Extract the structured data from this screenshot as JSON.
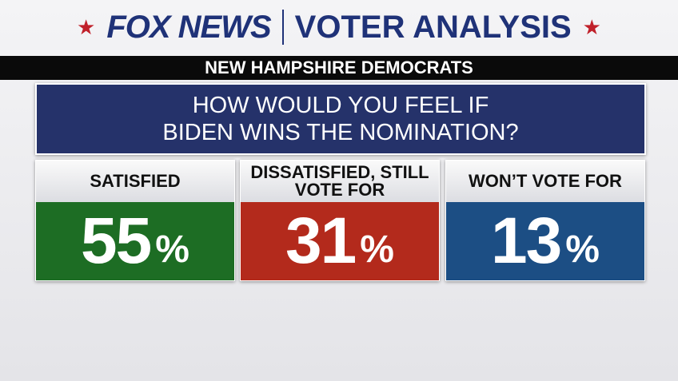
{
  "header": {
    "logo": "FOX NEWS",
    "title": "VOTER ANALYSIS",
    "subtitle": "NEW HAMPSHIRE DEMOCRATS"
  },
  "question": [
    "HOW WOULD YOU FEEL IF",
    "BIDEN WINS THE NOMINATION?"
  ],
  "panels": [
    {
      "label": "SATISFIED",
      "value": 55,
      "unit": "%",
      "color": "#1d6d24"
    },
    {
      "label": "DISSATISFIED, STILL VOTE FOR",
      "value": 31,
      "unit": "%",
      "color": "#b32a1c"
    },
    {
      "label": "WON’T VOTE FOR",
      "value": 13,
      "unit": "%",
      "color": "#1c4e84"
    }
  ]
}
